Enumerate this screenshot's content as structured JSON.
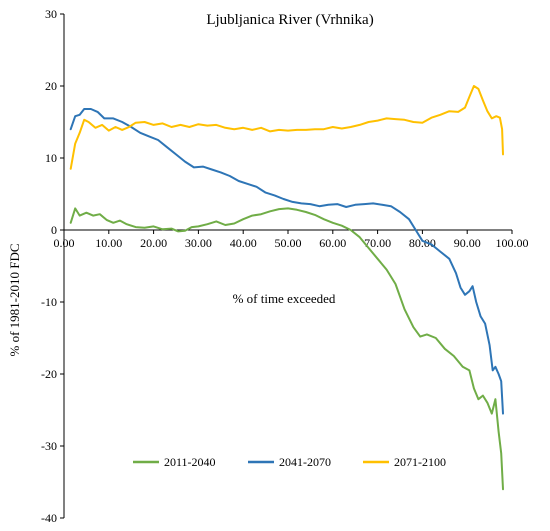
{
  "chart_data": {
    "type": "line",
    "title": "Ljubljanica River (Vrhnika)",
    "xlabel": "% of time exceeded",
    "ylabel": "% of 1981-2010 FDC",
    "xlim": [
      0,
      100
    ],
    "ylim": [
      -40,
      30
    ],
    "x_ticks": [
      "0.00",
      "10.00",
      "20.00",
      "30.00",
      "40.00",
      "50.00",
      "60.00",
      "70.00",
      "80.00",
      "90.00",
      "100.00"
    ],
    "y_ticks": [
      "-40",
      "-30",
      "-20",
      "-10",
      "0",
      "10",
      "20",
      "30"
    ],
    "grid": false,
    "legend_position": "bottom",
    "series": [
      {
        "name": "2011-2040",
        "color": "#70ad47",
        "points": [
          [
            1.5,
            1.0
          ],
          [
            2.5,
            3.0
          ],
          [
            3.5,
            2.0
          ],
          [
            5,
            2.4
          ],
          [
            6.5,
            2.0
          ],
          [
            8,
            2.2
          ],
          [
            9.5,
            1.4
          ],
          [
            11,
            1.0
          ],
          [
            12.5,
            1.3
          ],
          [
            14,
            0.8
          ],
          [
            16,
            0.4
          ],
          [
            18,
            0.3
          ],
          [
            20,
            0.5
          ],
          [
            22,
            0.1
          ],
          [
            24,
            0.2
          ],
          [
            25.5,
            -0.2
          ],
          [
            27,
            -0.1
          ],
          [
            28.5,
            0.4
          ],
          [
            30,
            0.5
          ],
          [
            32,
            0.8
          ],
          [
            34,
            1.2
          ],
          [
            36,
            0.7
          ],
          [
            38,
            0.9
          ],
          [
            40,
            1.5
          ],
          [
            42,
            2.0
          ],
          [
            44,
            2.2
          ],
          [
            46,
            2.6
          ],
          [
            48,
            2.9
          ],
          [
            50,
            3.0
          ],
          [
            52,
            2.8
          ],
          [
            54,
            2.5
          ],
          [
            56,
            2.1
          ],
          [
            58,
            1.5
          ],
          [
            60,
            1.0
          ],
          [
            62,
            0.6
          ],
          [
            64,
            0.0
          ],
          [
            66,
            -1.0
          ],
          [
            68,
            -2.5
          ],
          [
            70,
            -4.0
          ],
          [
            72,
            -5.5
          ],
          [
            74,
            -7.5
          ],
          [
            76,
            -11.0
          ],
          [
            78,
            -13.5
          ],
          [
            79.5,
            -14.8
          ],
          [
            81,
            -14.5
          ],
          [
            83,
            -15.0
          ],
          [
            85,
            -16.5
          ],
          [
            87,
            -17.5
          ],
          [
            89,
            -19.0
          ],
          [
            90.5,
            -19.5
          ],
          [
            91.5,
            -22.0
          ],
          [
            92.5,
            -23.5
          ],
          [
            93.5,
            -23.0
          ],
          [
            94.5,
            -24.0
          ],
          [
            95.5,
            -25.5
          ],
          [
            96.3,
            -23.5
          ],
          [
            97,
            -28.0
          ],
          [
            97.6,
            -31.0
          ],
          [
            98,
            -36.0
          ]
        ]
      },
      {
        "name": "2041-2070",
        "color": "#2e75b6",
        "points": [
          [
            1.5,
            14.0
          ],
          [
            2.5,
            15.8
          ],
          [
            3.5,
            16.0
          ],
          [
            4.5,
            16.8
          ],
          [
            6,
            16.8
          ],
          [
            7.5,
            16.4
          ],
          [
            9,
            15.5
          ],
          [
            11,
            15.5
          ],
          [
            13,
            15.0
          ],
          [
            15,
            14.3
          ],
          [
            17,
            13.5
          ],
          [
            19,
            13.0
          ],
          [
            21,
            12.5
          ],
          [
            23,
            11.5
          ],
          [
            25,
            10.5
          ],
          [
            27,
            9.5
          ],
          [
            29,
            8.7
          ],
          [
            31,
            8.8
          ],
          [
            33,
            8.4
          ],
          [
            35,
            8.0
          ],
          [
            37,
            7.5
          ],
          [
            39,
            6.8
          ],
          [
            41,
            6.4
          ],
          [
            43,
            6.0
          ],
          [
            45,
            5.2
          ],
          [
            47,
            4.8
          ],
          [
            49,
            4.3
          ],
          [
            51,
            3.9
          ],
          [
            53,
            3.7
          ],
          [
            55,
            3.6
          ],
          [
            57,
            3.3
          ],
          [
            59,
            3.5
          ],
          [
            61,
            3.6
          ],
          [
            63,
            3.2
          ],
          [
            65,
            3.5
          ],
          [
            67,
            3.6
          ],
          [
            69,
            3.7
          ],
          [
            71,
            3.5
          ],
          [
            73,
            3.3
          ],
          [
            75,
            2.5
          ],
          [
            77,
            1.5
          ],
          [
            78.5,
            0.0
          ],
          [
            80,
            -1.5
          ],
          [
            82,
            -2.0
          ],
          [
            84,
            -3.0
          ],
          [
            86,
            -4.0
          ],
          [
            87.5,
            -6.0
          ],
          [
            88.5,
            -8.0
          ],
          [
            89.5,
            -9.0
          ],
          [
            90.5,
            -8.5
          ],
          [
            91.2,
            -7.8
          ],
          [
            92,
            -10.0
          ],
          [
            93,
            -12.0
          ],
          [
            94,
            -13.0
          ],
          [
            95,
            -16.0
          ],
          [
            95.7,
            -19.5
          ],
          [
            96.3,
            -19.0
          ],
          [
            97,
            -20.0
          ],
          [
            97.6,
            -21.0
          ],
          [
            98,
            -25.5
          ]
        ]
      },
      {
        "name": "2071-2100",
        "color": "#ffc000",
        "points": [
          [
            1.5,
            8.5
          ],
          [
            2.5,
            12.0
          ],
          [
            3.5,
            13.5
          ],
          [
            4.5,
            15.3
          ],
          [
            5.5,
            15.0
          ],
          [
            7,
            14.2
          ],
          [
            8.5,
            14.6
          ],
          [
            10,
            13.8
          ],
          [
            11.5,
            14.3
          ],
          [
            13,
            13.9
          ],
          [
            14.5,
            14.3
          ],
          [
            16,
            14.9
          ],
          [
            18,
            15.0
          ],
          [
            20,
            14.6
          ],
          [
            22,
            14.8
          ],
          [
            24,
            14.3
          ],
          [
            26,
            14.6
          ],
          [
            28,
            14.3
          ],
          [
            30,
            14.7
          ],
          [
            32,
            14.5
          ],
          [
            34,
            14.6
          ],
          [
            36,
            14.2
          ],
          [
            38,
            14.0
          ],
          [
            40,
            14.2
          ],
          [
            42,
            13.9
          ],
          [
            44,
            14.2
          ],
          [
            46,
            13.7
          ],
          [
            48,
            13.9
          ],
          [
            50,
            13.8
          ],
          [
            52,
            13.9
          ],
          [
            54,
            13.9
          ],
          [
            56,
            14.0
          ],
          [
            58,
            14.0
          ],
          [
            60,
            14.3
          ],
          [
            62,
            14.1
          ],
          [
            64,
            14.3
          ],
          [
            66,
            14.6
          ],
          [
            68,
            15.0
          ],
          [
            70,
            15.2
          ],
          [
            72,
            15.5
          ],
          [
            74,
            15.4
          ],
          [
            76,
            15.3
          ],
          [
            78,
            15.0
          ],
          [
            80,
            14.9
          ],
          [
            82,
            15.6
          ],
          [
            84,
            16.0
          ],
          [
            86,
            16.5
          ],
          [
            88,
            16.4
          ],
          [
            89.5,
            17.0
          ],
          [
            90.5,
            18.5
          ],
          [
            91.5,
            20.0
          ],
          [
            92.5,
            19.6
          ],
          [
            93.5,
            18.0
          ],
          [
            94.5,
            16.5
          ],
          [
            95.5,
            15.5
          ],
          [
            96.5,
            15.8
          ],
          [
            97.3,
            15.6
          ],
          [
            97.8,
            14.0
          ],
          [
            98,
            10.5
          ]
        ]
      }
    ]
  }
}
